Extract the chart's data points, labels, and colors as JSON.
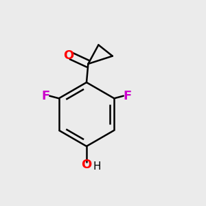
{
  "bg_color": "#ebebeb",
  "bond_color": "#000000",
  "bond_width": 1.8,
  "atom_colors": {
    "O_carbonyl": "#ff0000",
    "F": "#cc00cc",
    "O_hydroxyl": "#ff0000",
    "H": "#000000",
    "C": "#000000"
  },
  "font_size_atoms": 13,
  "font_size_H": 11
}
